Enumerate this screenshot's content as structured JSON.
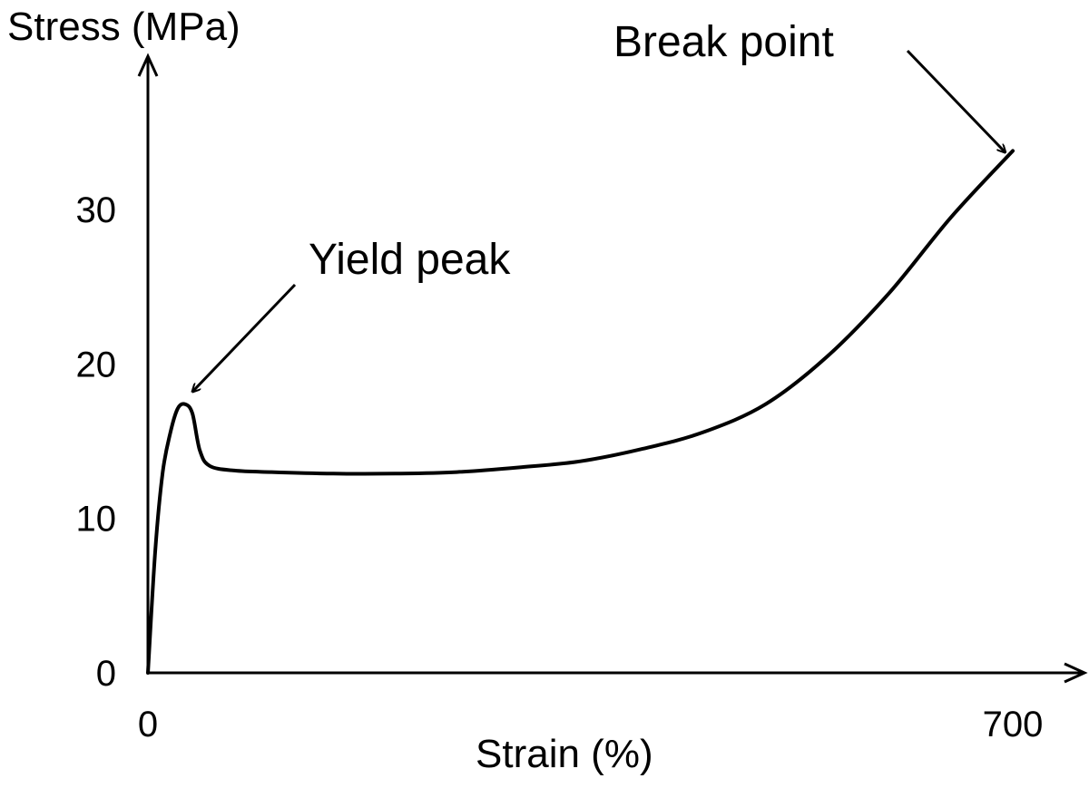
{
  "chart_data": {
    "type": "line",
    "title": "",
    "xlabel": "Strain (%)",
    "ylabel": "Stress (MPa)",
    "xlim": [
      0,
      700
    ],
    "ylim": [
      0,
      35
    ],
    "x_ticks": [
      {
        "value": 0,
        "label": "0"
      },
      {
        "value": 700,
        "label": "700"
      }
    ],
    "y_ticks": [
      {
        "value": 0,
        "label": "0"
      },
      {
        "value": 10,
        "label": "10"
      },
      {
        "value": 20,
        "label": "20"
      },
      {
        "value": 30,
        "label": "30"
      }
    ],
    "grid": false,
    "legend": "none",
    "series": [
      {
        "color": "#000000",
        "points": [
          {
            "x": 0,
            "y": 0
          },
          {
            "x": 6,
            "y": 8
          },
          {
            "x": 12,
            "y": 13
          },
          {
            "x": 18,
            "y": 15.5
          },
          {
            "x": 24,
            "y": 17.1
          },
          {
            "x": 30,
            "y": 17.4
          },
          {
            "x": 36,
            "y": 16.8
          },
          {
            "x": 42,
            "y": 14.4
          },
          {
            "x": 50,
            "y": 13.4
          },
          {
            "x": 70,
            "y": 13.1
          },
          {
            "x": 100,
            "y": 13.0
          },
          {
            "x": 150,
            "y": 12.9
          },
          {
            "x": 200,
            "y": 12.9
          },
          {
            "x": 250,
            "y": 13.0
          },
          {
            "x": 300,
            "y": 13.3
          },
          {
            "x": 350,
            "y": 13.7
          },
          {
            "x": 400,
            "y": 14.5
          },
          {
            "x": 450,
            "y": 15.6
          },
          {
            "x": 500,
            "y": 17.4
          },
          {
            "x": 550,
            "y": 20.5
          },
          {
            "x": 600,
            "y": 24.6
          },
          {
            "x": 650,
            "y": 29.5
          },
          {
            "x": 700,
            "y": 33.8
          }
        ]
      }
    ],
    "annotations": [
      {
        "text": "Yield peak",
        "target": {
          "x": 36,
          "y": 18.2
        }
      },
      {
        "text": "Break point",
        "target": {
          "x": 694,
          "y": 33.7
        }
      }
    ]
  }
}
